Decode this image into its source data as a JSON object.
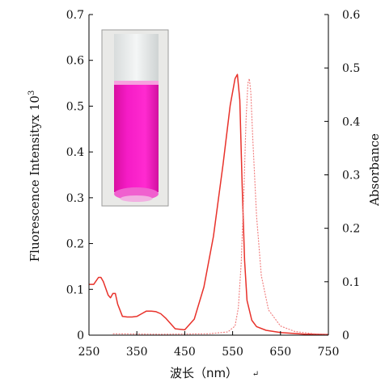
{
  "chart_data": {
    "type": "line",
    "xlabel": "波长（nm）",
    "xlabel_mark": "↵",
    "ylabel": "Fluorescence Intensityx 10",
    "ylabel_exponent": "3",
    "y2label": "Absorbance",
    "xlim": [
      250,
      750
    ],
    "ylim": [
      0,
      0.7
    ],
    "y2lim": [
      0,
      0.6
    ],
    "xticks": [
      "250",
      "350",
      "450",
      "550",
      "650",
      "750"
    ],
    "yticks": [
      "0",
      "0.1",
      "0.2",
      "0.3",
      "0.4",
      "0.5",
      "0.6",
      "0.7"
    ],
    "y2ticks": [
      "0",
      "0.1",
      "0.2",
      "0.3",
      "0.4",
      "0.5",
      "0.6"
    ],
    "inset": "photo of cuvette with magenta solution",
    "colors": {
      "absorbance": "#e8312a",
      "fluorescence": "#f07a7a",
      "axis": "#000000",
      "solution": "#f01bbd"
    },
    "series": [
      {
        "axis": "right",
        "style": "solid",
        "x": [
          250,
          260,
          270,
          275,
          280,
          290,
          295,
          300,
          305,
          310,
          320,
          330,
          340,
          350,
          360,
          370,
          380,
          390,
          400,
          410,
          420,
          430,
          450,
          470,
          490,
          510,
          530,
          545,
          555,
          560,
          565,
          570,
          575,
          580,
          590,
          600,
          620,
          650,
          700,
          750
        ],
        "y": [
          0.095,
          0.095,
          0.108,
          0.108,
          0.1,
          0.075,
          0.07,
          0.078,
          0.078,
          0.058,
          0.035,
          0.034,
          0.034,
          0.035,
          0.04,
          0.045,
          0.045,
          0.044,
          0.04,
          0.032,
          0.022,
          0.012,
          0.01,
          0.03,
          0.09,
          0.185,
          0.32,
          0.43,
          0.48,
          0.488,
          0.44,
          0.28,
          0.14,
          0.065,
          0.028,
          0.016,
          0.009,
          0.005,
          0.002,
          0.001
        ]
      },
      {
        "axis": "left",
        "style": "dashed",
        "x": [
          300,
          400,
          500,
          540,
          555,
          562,
          568,
          574,
          578,
          582,
          585,
          588,
          592,
          600,
          610,
          625,
          650,
          680,
          720,
          750
        ],
        "y": [
          0.003,
          0.002,
          0.003,
          0.007,
          0.02,
          0.06,
          0.16,
          0.33,
          0.47,
          0.55,
          0.56,
          0.53,
          0.43,
          0.26,
          0.13,
          0.055,
          0.02,
          0.008,
          0.003,
          0.002
        ]
      }
    ]
  }
}
